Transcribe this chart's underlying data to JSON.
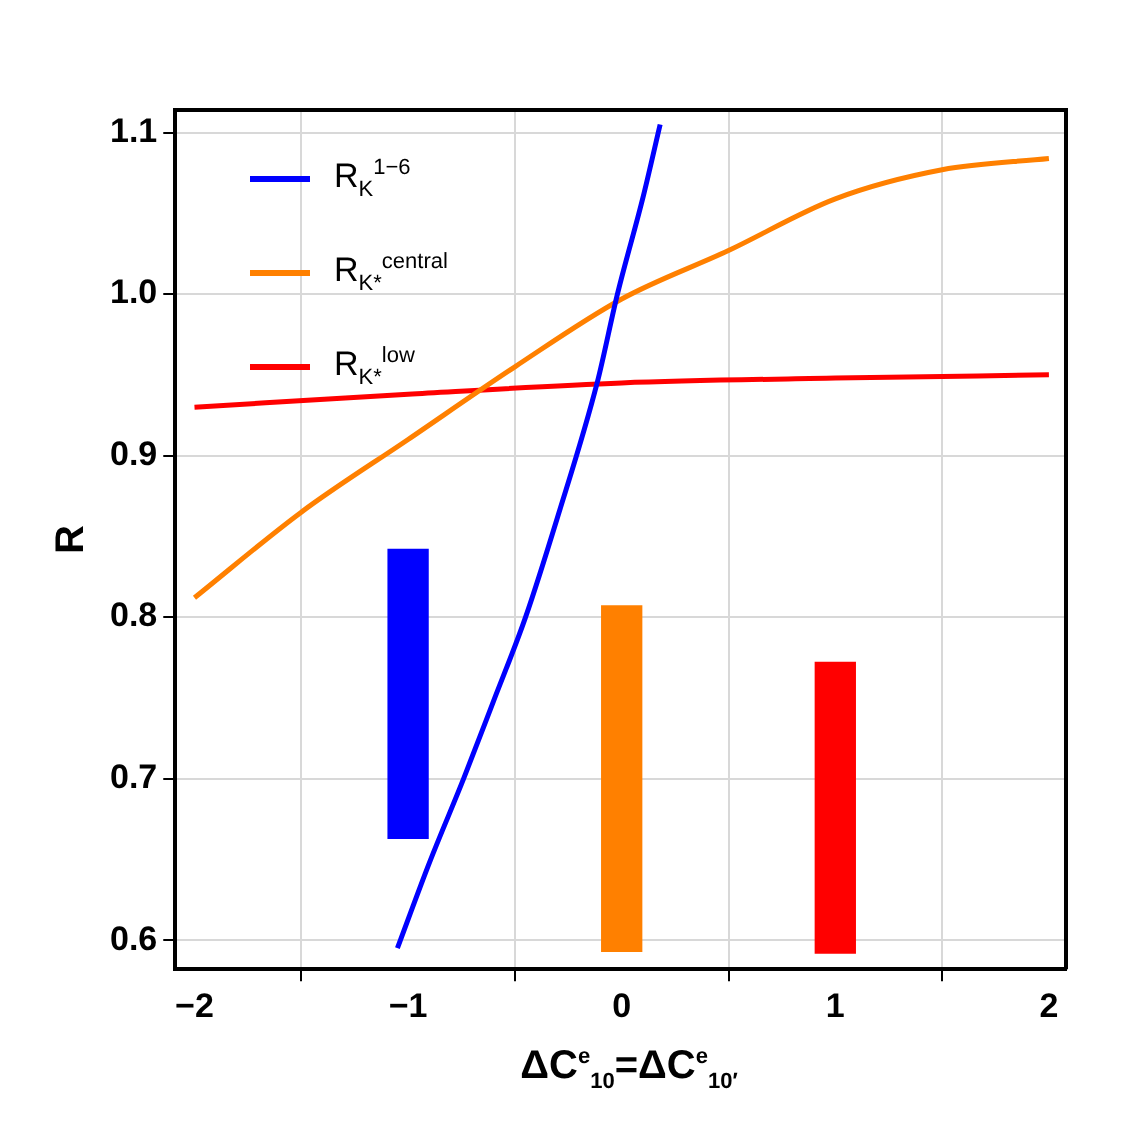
{
  "chart_data": {
    "type": "line",
    "xlabel": "ΔC$^{e}$$_{10}$=ΔC$^{e}$$_{10′}$",
    "ylabel": "R",
    "xlim": [
      -2.09,
      2.08
    ],
    "xticks": [
      {
        "value": -2,
        "label": "−2"
      },
      {
        "value": -1,
        "label": "−1"
      },
      0,
      1,
      2
    ],
    "ylim": [
      0.582,
      1.114
    ],
    "yticks": [
      0.6,
      0.7,
      0.8,
      0.9,
      {
        "value": 1,
        "label": "1.0"
      },
      1.1
    ],
    "grid": true,
    "legend": "top left",
    "marker": "none",
    "line_style": "solid",
    "series": [
      {
        "name": "R$_{K}$$^{1−6}$",
        "color": "#0000ff",
        "x": [
          -1.05,
          -0.9,
          -0.74,
          -0.6,
          -0.45,
          -0.3,
          -0.115,
          -0.02,
          0.1,
          0.18
        ],
        "values": [
          0.595,
          0.648,
          0.7,
          0.748,
          0.8,
          0.862,
          0.945,
          1.0,
          1.06,
          1.105
        ]
      },
      {
        "name": "R$_{K*}$$^{central}$",
        "color": "#ff8000",
        "x": [
          -2,
          -1.5,
          -1,
          -0.5,
          0,
          0.5,
          1,
          1.5,
          2
        ],
        "values": [
          0.812,
          0.865,
          0.91,
          0.955,
          0.997,
          1.027,
          1.059,
          1.077,
          1.084
        ]
      },
      {
        "name": "R$_{K*}$$^{low}$",
        "color": "#ff0000",
        "x": [
          -2,
          -1,
          0,
          1,
          2
        ],
        "values": [
          0.93,
          0.938,
          0.945,
          0.948,
          0.95
        ]
      },
      {
        "type": "bar",
        "x": [
          -1,
          0,
          1
        ],
        "base": [
          0.663,
          0.593,
          0.592
        ],
        "values": [
          0.179,
          0.214,
          0.18
        ],
        "colors": [
          "#0000ff",
          "#ff8000",
          "#ff0000"
        ]
      }
    ]
  }
}
